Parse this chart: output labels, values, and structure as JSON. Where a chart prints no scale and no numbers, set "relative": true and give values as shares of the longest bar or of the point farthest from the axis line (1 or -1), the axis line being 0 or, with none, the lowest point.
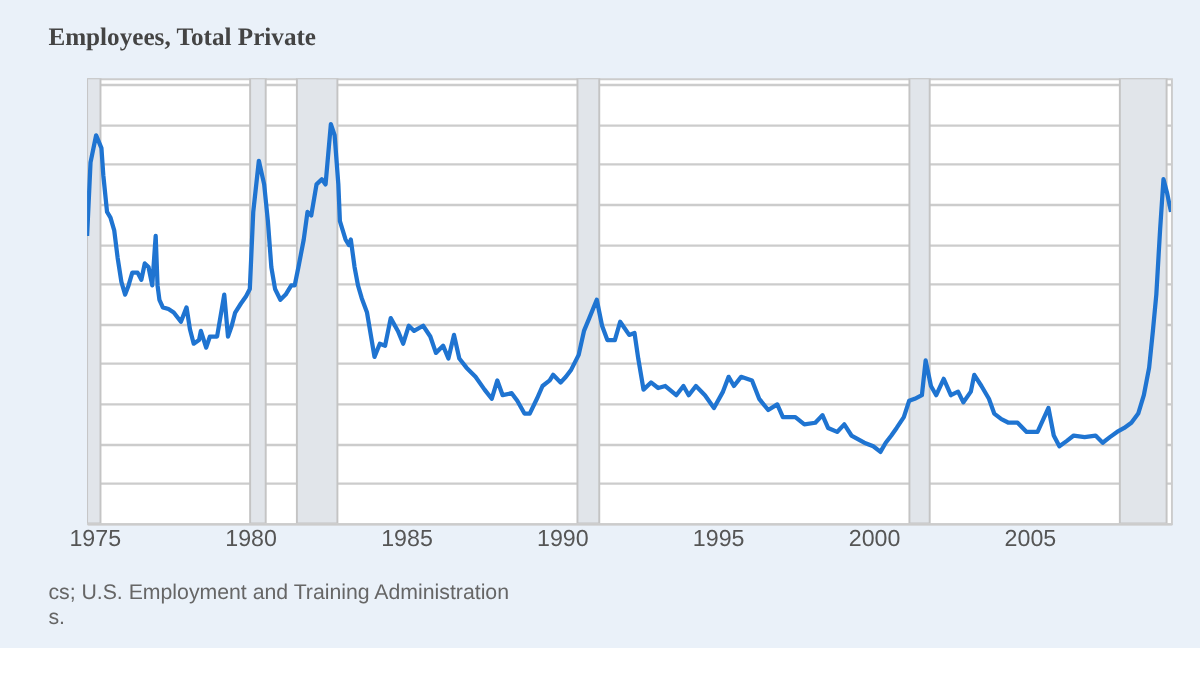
{
  "chart_data": {
    "type": "line",
    "title": "Employees, Total Private",
    "relative": true,
    "xlim": [
      1974.77,
      2009.54
    ],
    "xticks": [
      1975,
      1980,
      1985,
      1990,
      1995,
      2000,
      2005
    ],
    "grid": "y",
    "bands": [
      {
        "axis": "x",
        "from": 1974.77,
        "to": 1975.2,
        "color": "#e1e5ea"
      },
      {
        "axis": "x",
        "from": 1980.0,
        "to": 1980.5,
        "color": "#e1e5ea"
      },
      {
        "axis": "x",
        "from": 1981.5,
        "to": 1982.8,
        "color": "#e1e5ea"
      },
      {
        "axis": "x",
        "from": 1990.5,
        "to": 1991.2,
        "color": "#e1e5ea"
      },
      {
        "axis": "x",
        "from": 2001.15,
        "to": 2001.8,
        "color": "#e1e5ea"
      },
      {
        "axis": "x",
        "from": 2007.9,
        "to": 2009.4,
        "color": "#e1e5ea"
      }
    ],
    "annotations": [
      "cs; U.S. Employment and Training Administration",
      "s."
    ],
    "x": [
      1974.77,
      1974.88,
      1975.06,
      1975.23,
      1975.29,
      1975.41,
      1975.52,
      1975.64,
      1975.75,
      1975.87,
      1975.99,
      1976.1,
      1976.22,
      1976.39,
      1976.51,
      1976.62,
      1976.74,
      1976.86,
      1976.97,
      1977.03,
      1977.09,
      1977.2,
      1977.38,
      1977.55,
      1977.78,
      1977.96,
      1978.07,
      1978.19,
      1978.36,
      1978.42,
      1978.59,
      1978.71,
      1978.94,
      1979.17,
      1979.29,
      1979.41,
      1979.52,
      1979.7,
      1979.87,
      1979.99,
      1980.1,
      1980.28,
      1980.45,
      1980.57,
      1980.68,
      1980.8,
      1980.97,
      1981.14,
      1981.32,
      1981.43,
      1981.55,
      1981.72,
      1981.84,
      1981.96,
      1982.13,
      1982.3,
      1982.42,
      1982.59,
      1982.71,
      1982.83,
      1982.88,
      1983.06,
      1983.17,
      1983.23,
      1983.35,
      1983.46,
      1983.58,
      1983.75,
      1983.99,
      1984.16,
      1984.33,
      1984.51,
      1984.74,
      1984.91,
      1985.09,
      1985.26,
      1985.55,
      1985.78,
      1985.96,
      1986.19,
      1986.36,
      1986.54,
      1986.71,
      1986.94,
      1987.23,
      1987.52,
      1987.75,
      1987.93,
      1988.1,
      1988.39,
      1988.57,
      1988.8,
      1988.97,
      1989.2,
      1989.38,
      1989.61,
      1989.72,
      1989.96,
      1990.13,
      1990.3,
      1990.54,
      1990.71,
      1990.88,
      1991.12,
      1991.29,
      1991.46,
      1991.7,
      1991.87,
      1992.16,
      1992.33,
      1992.45,
      1992.62,
      1992.86,
      1993.09,
      1993.32,
      1993.67,
      1993.9,
      1994.07,
      1994.3,
      1994.59,
      1994.88,
      1995.17,
      1995.35,
      1995.52,
      1995.75,
      1996.1,
      1996.33,
      1996.62,
      1996.91,
      1997.09,
      1997.49,
      1997.78,
      1998.13,
      1998.36,
      1998.54,
      1998.83,
      1999.06,
      1999.29,
      1999.7,
      1999.99,
      2000.22,
      2000.39,
      2000.57,
      2000.74,
      2000.97,
      2001.14,
      2001.32,
      2001.55,
      2001.67,
      2001.84,
      2002.01,
      2002.25,
      2002.48,
      2002.71,
      2002.88,
      2003.12,
      2003.23,
      2003.46,
      2003.7,
      2003.87,
      2004.1,
      2004.33,
      2004.62,
      2004.91,
      2005.09,
      2005.26,
      2005.61,
      2005.78,
      2005.96,
      2006.19,
      2006.42,
      2006.77,
      2007.12,
      2007.35,
      2007.58,
      2007.81,
      2008.04,
      2008.27,
      2008.49,
      2008.67,
      2008.84,
      2008.96,
      2009.07,
      2009.19,
      2009.3,
      2009.42,
      2009.54
    ],
    "series": [
      {
        "color": "#1f74d1",
        "values": [
          0.72,
          0.904,
          0.972,
          0.94,
          0.872,
          0.78,
          0.766,
          0.734,
          0.665,
          0.605,
          0.573,
          0.596,
          0.628,
          0.628,
          0.61,
          0.651,
          0.642,
          0.596,
          0.72,
          0.596,
          0.56,
          0.541,
          0.537,
          0.528,
          0.505,
          0.541,
          0.486,
          0.45,
          0.459,
          0.482,
          0.44,
          0.468,
          0.468,
          0.573,
          0.468,
          0.495,
          0.528,
          0.55,
          0.569,
          0.587,
          0.78,
          0.908,
          0.849,
          0.757,
          0.642,
          0.587,
          0.56,
          0.573,
          0.596,
          0.596,
          0.642,
          0.711,
          0.78,
          0.771,
          0.849,
          0.862,
          0.849,
          1.0,
          0.972,
          0.849,
          0.757,
          0.711,
          0.697,
          0.711,
          0.642,
          0.596,
          0.564,
          0.528,
          0.417,
          0.45,
          0.445,
          0.514,
          0.482,
          0.45,
          0.495,
          0.482,
          0.495,
          0.468,
          0.427,
          0.445,
          0.413,
          0.472,
          0.413,
          0.39,
          0.367,
          0.335,
          0.312,
          0.358,
          0.321,
          0.326,
          0.307,
          0.275,
          0.275,
          0.312,
          0.344,
          0.358,
          0.372,
          0.353,
          0.367,
          0.385,
          0.422,
          0.482,
          0.514,
          0.56,
          0.495,
          0.459,
          0.459,
          0.505,
          0.472,
          0.477,
          0.413,
          0.335,
          0.353,
          0.339,
          0.344,
          0.321,
          0.344,
          0.321,
          0.344,
          0.321,
          0.289,
          0.33,
          0.367,
          0.344,
          0.367,
          0.358,
          0.312,
          0.284,
          0.298,
          0.266,
          0.266,
          0.248,
          0.252,
          0.271,
          0.239,
          0.229,
          0.248,
          0.22,
          0.202,
          0.193,
          0.179,
          0.202,
          0.22,
          0.239,
          0.266,
          0.307,
          0.312,
          0.321,
          0.408,
          0.344,
          0.321,
          0.362,
          0.321,
          0.33,
          0.303,
          0.33,
          0.372,
          0.344,
          0.312,
          0.275,
          0.261,
          0.252,
          0.252,
          0.229,
          0.229,
          0.229,
          0.289,
          0.22,
          0.193,
          0.206,
          0.22,
          0.216,
          0.22,
          0.202,
          0.216,
          0.229,
          0.239,
          0.252,
          0.275,
          0.321,
          0.39,
          0.482,
          0.573,
          0.734,
          0.862,
          0.826,
          0.78
        ]
      }
    ]
  }
}
